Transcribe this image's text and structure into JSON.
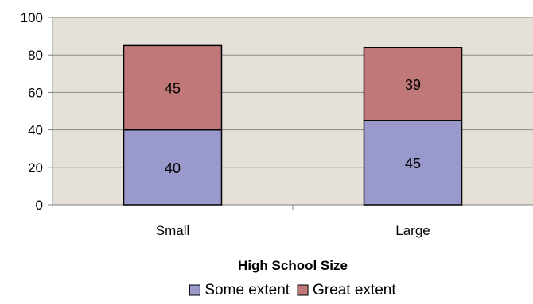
{
  "chart_data": {
    "type": "bar",
    "stacked": true,
    "categories": [
      "Small",
      "Large"
    ],
    "series": [
      {
        "name": "Some extent",
        "values": [
          40,
          45
        ],
        "color": "#9999cc"
      },
      {
        "name": "Great extent",
        "values": [
          45,
          39
        ],
        "color": "#c07878"
      }
    ],
    "xlabel": "High School Size",
    "ylabel": "",
    "ylim": [
      0,
      100
    ],
    "yticks": [
      0,
      20,
      40,
      60,
      80,
      100
    ],
    "grid": true,
    "plot_background": "#e6e1d8",
    "legend": "bottom"
  }
}
